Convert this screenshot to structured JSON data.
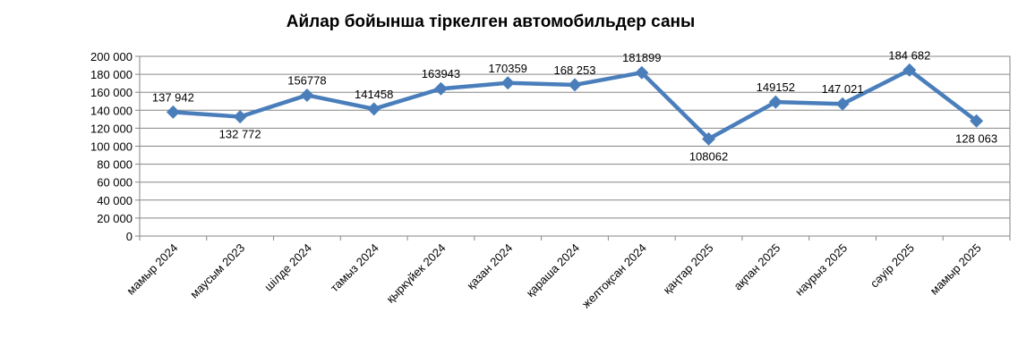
{
  "chart_data": {
    "type": "line",
    "title": "Айлар бойынша тіркелген автомобильдер саны",
    "categories": [
      "мамыр 2024",
      "маусым 2023",
      "шілде 2024",
      "тамыз 2024",
      "қыркүйек 2024",
      "қазан 2024",
      "қараша 2024",
      "желтоқсан 2024",
      "қаңтар 2025",
      "ақпан 2025",
      "наурыз 2025",
      "сәуір 2025",
      "мамыр 2025"
    ],
    "series": [
      {
        "values": [
          137942,
          132772,
          156778,
          141458,
          163943,
          170359,
          168253,
          181899,
          108062,
          149152,
          147021,
          184682,
          128063
        ],
        "data_labels": [
          "137 942",
          "132 772",
          "156778",
          "141458",
          "163943",
          "170359",
          "168 253",
          "181899",
          "108062",
          "149152",
          "147 021",
          "184 682",
          "128 063"
        ],
        "label_positions": [
          "above",
          "below",
          "above",
          "above",
          "above",
          "above",
          "above",
          "above",
          "below",
          "above",
          "above",
          "above",
          "below"
        ]
      }
    ],
    "y_tick_labels": [
      "0",
      "20 000",
      "40 000",
      "60 000",
      "80 000",
      "100 000",
      "120 000",
      "140 000",
      "160 000",
      "180 000",
      "200 000"
    ],
    "ylim": [
      0,
      200000
    ],
    "y_step": 20000,
    "grid": true,
    "legend": "none",
    "line_color": "#4a7ebb",
    "marker": "diamond"
  }
}
